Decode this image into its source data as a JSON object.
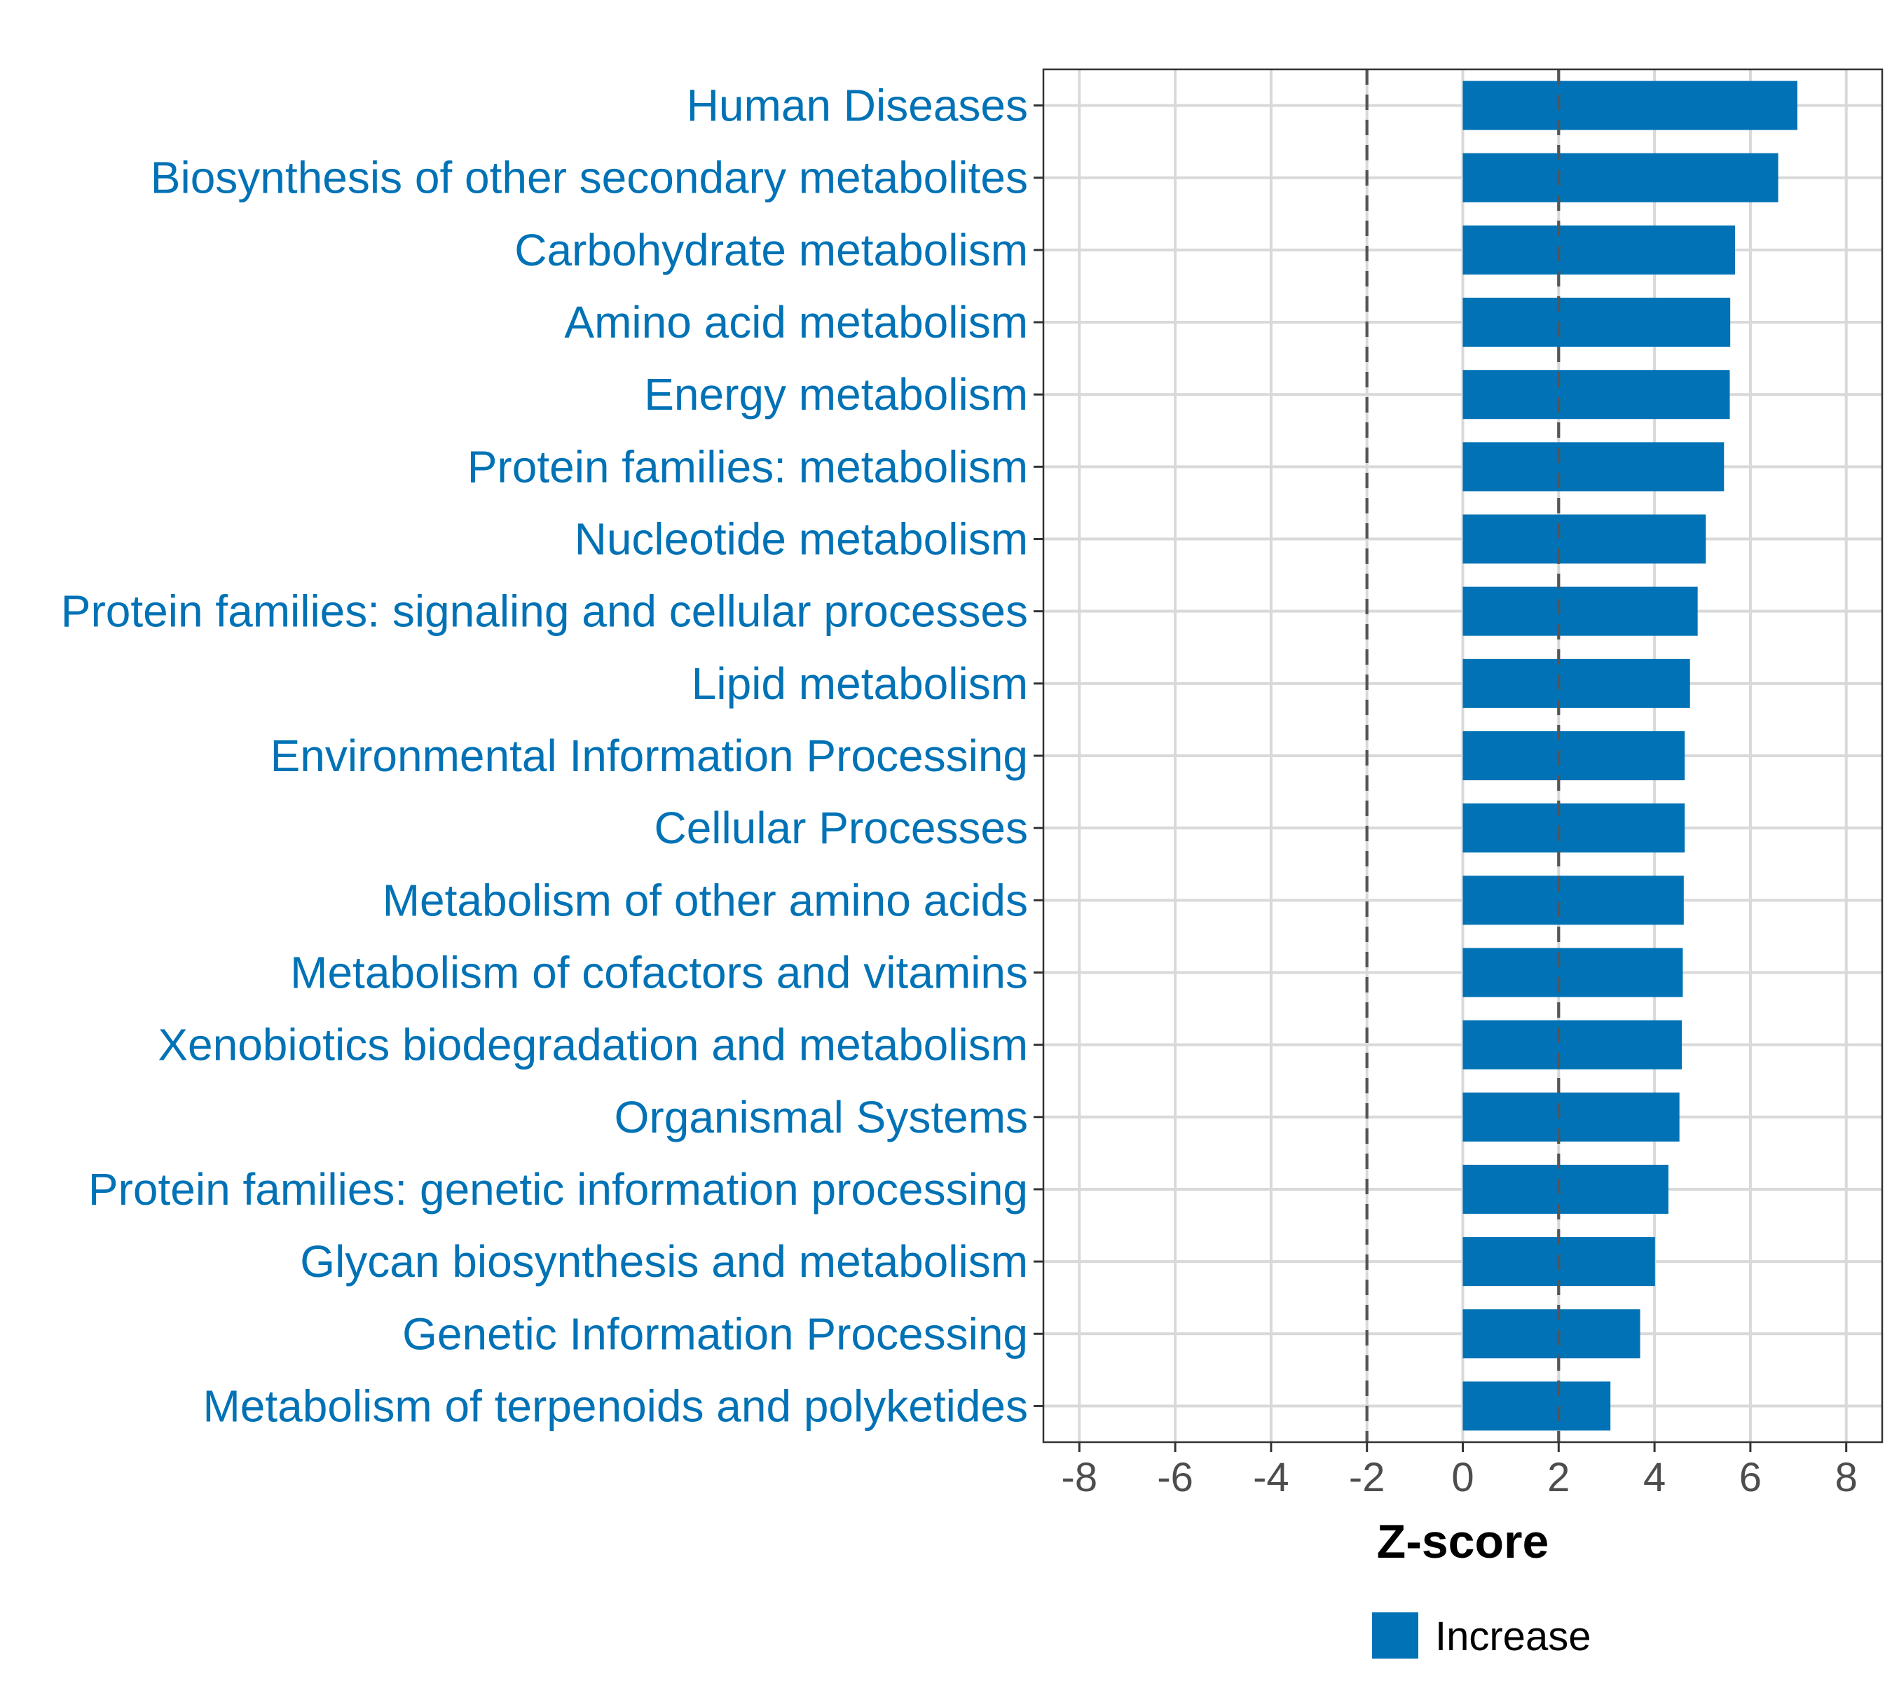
{
  "chart_data": {
    "type": "bar",
    "orientation": "horizontal",
    "categories": [
      "Human Diseases",
      "Biosynthesis of other secondary metabolites",
      "Carbohydrate metabolism",
      "Amino acid metabolism",
      "Energy metabolism",
      "Protein families: metabolism",
      "Nucleotide metabolism",
      "Protein families: signaling and cellular processes",
      "Lipid metabolism",
      "Environmental Information Processing",
      "Cellular Processes",
      "Metabolism of other amino acids",
      "Metabolism of cofactors and vitamins",
      "Xenobiotics biodegradation and metabolism",
      "Organismal Systems",
      "Protein families: genetic information processing",
      "Glycan biosynthesis and metabolism",
      "Genetic Information Processing",
      "Metabolism of terpenoids and polyketides"
    ],
    "series": [
      {
        "name": "Increase",
        "color": "#0072b5",
        "values": [
          6.98,
          6.58,
          5.68,
          5.58,
          5.57,
          5.45,
          5.07,
          4.9,
          4.74,
          4.63,
          4.63,
          4.61,
          4.59,
          4.57,
          4.52,
          4.29,
          4.01,
          3.7,
          3.08
        ]
      }
    ],
    "xlabel": "Z-score",
    "ylabel": "",
    "xlim": [
      -8.75,
      8.75
    ],
    "xticks": [
      -8,
      -6,
      -4,
      -2,
      0,
      2,
      4,
      6,
      8
    ],
    "xtick_labels": [
      "-8",
      "-6",
      "-4",
      "-2",
      "0",
      "2",
      "4",
      "6",
      "8"
    ],
    "reference_lines": [
      -2,
      2
    ],
    "grid": true,
    "legend": {
      "position": "bottom",
      "entries": [
        "Increase"
      ]
    },
    "colors": {
      "bar": "#0072b5",
      "label": "#0072b5"
    }
  }
}
